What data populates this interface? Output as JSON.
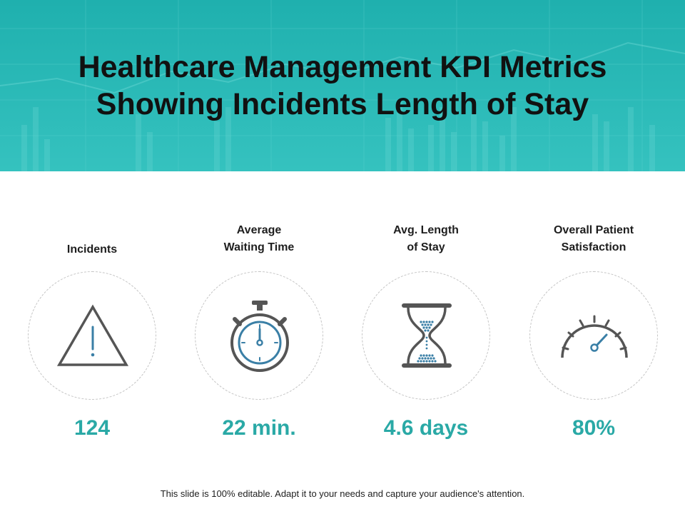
{
  "slide": {
    "title_line1": "Healthcare Management KPI Metrics",
    "title_line2": "Showing Incidents Length of Stay",
    "footer": "This slide is 100% editable. Adapt it to your needs and capture your audience's attention."
  },
  "kpis": [
    {
      "label_line1": "Incidents",
      "icon": "warning-icon",
      "value": "124"
    },
    {
      "label_line1": "Average",
      "label_line2": "Waiting Time",
      "icon": "stopwatch-icon",
      "value": "22 min."
    },
    {
      "label_line1": "Avg. Length",
      "label_line2": "of Stay",
      "icon": "hourglass-icon",
      "value": "4.6 days"
    },
    {
      "label_line1": "Overall Patient",
      "label_line2": "Satisfaction",
      "icon": "gauge-icon",
      "value": "80%"
    }
  ],
  "colors": {
    "banner": "#2ab3b1",
    "accent": "#2aa9a6",
    "icon_stroke": "#555555",
    "icon_accent": "#3a7fa6"
  }
}
